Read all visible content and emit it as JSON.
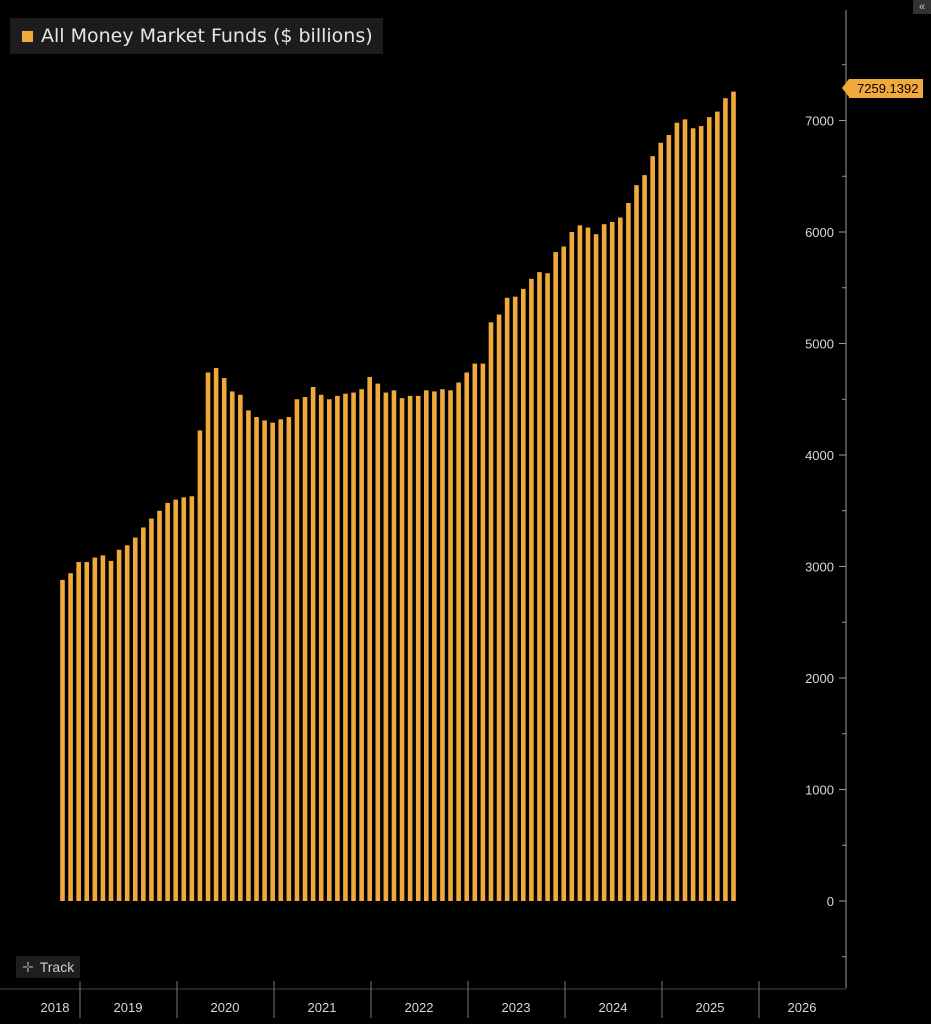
{
  "legend": {
    "label": "All Money Market Funds ($ billions)",
    "color": "#f2a93b"
  },
  "last_value_label": "7259.1392",
  "track_label": "Track",
  "collapse_icon": "double-chevron-left-icon",
  "chart_data": {
    "type": "bar",
    "title": "",
    "series": [
      {
        "name": "All Money Market Funds ($ billions)",
        "color": "#f2a93b",
        "values": [
          2880,
          2940,
          3040,
          3040,
          3080,
          3100,
          3050,
          3150,
          3190,
          3260,
          3350,
          3430,
          3500,
          3570,
          3600,
          3620,
          3630,
          4220,
          4740,
          4780,
          4690,
          4570,
          4540,
          4400,
          4340,
          4310,
          4290,
          4320,
          4340,
          4500,
          4520,
          4610,
          4540,
          4500,
          4530,
          4550,
          4560,
          4590,
          4700,
          4640,
          4560,
          4580,
          4510,
          4530,
          4530,
          4580,
          4570,
          4590,
          4580,
          4650,
          4740,
          4820,
          4820,
          5190,
          5260,
          5410,
          5420,
          5490,
          5580,
          5640,
          5630,
          5820,
          5870,
          6000,
          6060,
          6040,
          5980,
          6070,
          6090,
          6130,
          6260,
          6420,
          6510,
          6680,
          6800,
          6870,
          6980,
          7010,
          6930,
          6950,
          7030,
          7080,
          7200,
          7259.1392
        ]
      }
    ],
    "x_axis": {
      "labels": [
        "2018",
        "2019",
        "2020",
        "2021",
        "2022",
        "2023",
        "2024",
        "2025",
        "2026"
      ]
    },
    "y_axis": {
      "ticks": [
        0,
        1000,
        2000,
        3000,
        4000,
        5000,
        6000,
        7000
      ],
      "range": [
        -600,
        8000
      ],
      "position": "right"
    },
    "legend_position": "top-left",
    "grid": false
  }
}
